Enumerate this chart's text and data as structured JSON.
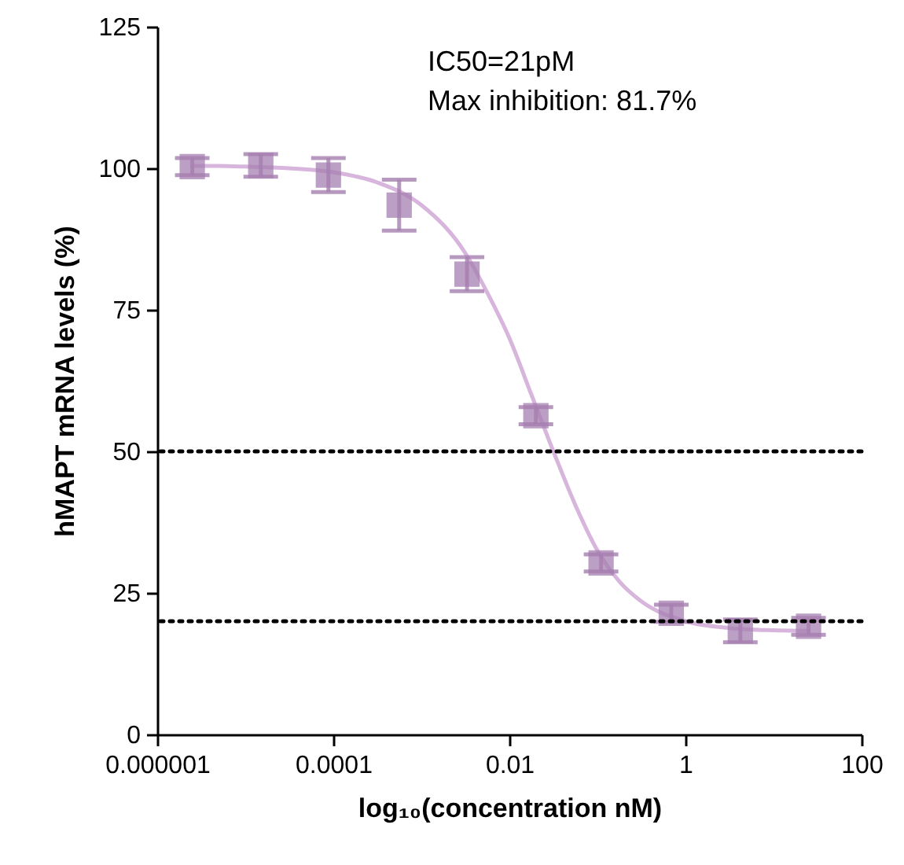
{
  "chart_data": {
    "type": "scatter",
    "xlabel": "log₁₀(concentration nM)",
    "ylabel": "hMAPT mRNA levels (%)",
    "annotations": [
      "IC50=21pM",
      "Max inhibition: 81.7%"
    ],
    "log": "x",
    "xlim": [
      1e-06,
      100
    ],
    "ylim": [
      0,
      125
    ],
    "xticks": [
      {
        "value": 1e-06,
        "label": "0.000001"
      },
      {
        "value": 0.0001,
        "label": "0.0001"
      },
      {
        "value": 0.01,
        "label": "0.01"
      },
      {
        "value": 1,
        "label": "1"
      },
      {
        "value": 100,
        "label": "100"
      }
    ],
    "yticks": [
      0,
      25,
      50,
      75,
      100,
      125
    ],
    "grid": false,
    "marker": "square",
    "series": [
      {
        "type": "line",
        "marker": "none",
        "color": "#d7b5dc",
        "x": [
          2.5e-06,
          5e-06,
          1e-05,
          3.16e-05,
          0.0001,
          0.000316,
          0.001,
          0.00316,
          0.00562,
          0.01,
          0.0178,
          0.0316,
          0.0562,
          0.1,
          0.178,
          0.316,
          1,
          3.16,
          10,
          25
        ],
        "values": [
          100.4,
          100.4,
          100.3,
          100,
          99.3,
          97.5,
          93.5,
          85,
          78,
          70,
          60,
          50,
          40.5,
          32.5,
          27,
          23.5,
          20,
          18.8,
          18.4,
          18.3
        ]
      },
      {
        "type": "scatter",
        "color": "#a57fb0",
        "x": [
          2.5e-06,
          1.5e-05,
          8.8e-05,
          0.00056,
          0.0033,
          0.02,
          0.11,
          0.69,
          4.2,
          25
        ],
        "values": [
          100.3,
          100.5,
          98.8,
          93.5,
          81.3,
          56.3,
          30.3,
          21.4,
          18.3,
          19.1
        ],
        "errors": [
          1.5,
          2,
          3,
          4.5,
          3,
          1.5,
          1.5,
          1.5,
          2,
          1.5
        ]
      }
    ],
    "ref_lines": [
      {
        "axis": "y",
        "value": 50,
        "color": "#000000",
        "line_style": "dotted"
      },
      {
        "axis": "y",
        "value": 20,
        "color": "#000000",
        "line_style": "dotted"
      }
    ]
  }
}
